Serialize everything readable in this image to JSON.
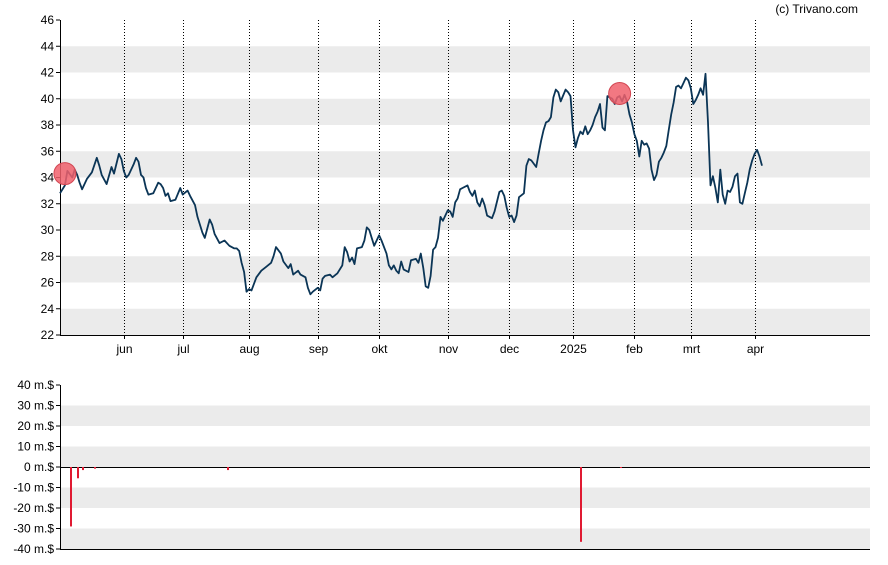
{
  "credit": "(c) Trivano.com",
  "colors": {
    "band": "#ebebeb",
    "line": "#0b3556",
    "marker": "#f0606c",
    "marker_edge": "#d24652",
    "volume_bar": "#e01a32",
    "axis": "#000000",
    "vgrid": "#000000"
  },
  "chart_data": [
    {
      "type": "line",
      "title": "",
      "xlabel": "",
      "ylabel": "",
      "ylim": [
        22,
        46
      ],
      "yticks": [
        22,
        24,
        26,
        28,
        30,
        32,
        34,
        36,
        38,
        40,
        42,
        44,
        46
      ],
      "x_range_days": [
        0,
        330
      ],
      "x_ticks": [
        {
          "label": "jun",
          "day": 26
        },
        {
          "label": "jul",
          "day": 50
        },
        {
          "label": "aug",
          "day": 77
        },
        {
          "label": "sep",
          "day": 105
        },
        {
          "label": "okt",
          "day": 130
        },
        {
          "label": "nov",
          "day": 158
        },
        {
          "label": "dec",
          "day": 183
        },
        {
          "label": "2025",
          "day": 209
        },
        {
          "label": "feb",
          "day": 234
        },
        {
          "label": "mrt",
          "day": 257
        },
        {
          "label": "apr",
          "day": 283
        }
      ],
      "grid": "alternating horizontal bands, dotted vertical lines at month ticks",
      "series_points": [
        [
          0,
          32.8
        ],
        [
          2,
          33.4
        ],
        [
          3,
          34.5
        ],
        [
          5,
          34.0
        ],
        [
          6,
          34.6
        ],
        [
          7,
          34.2
        ],
        [
          8,
          33.6
        ],
        [
          9,
          33.1
        ],
        [
          11,
          33.9
        ],
        [
          13,
          34.4
        ],
        [
          15,
          35.5
        ],
        [
          16,
          34.9
        ],
        [
          17,
          34.2
        ],
        [
          19,
          33.5
        ],
        [
          21,
          34.8
        ],
        [
          22,
          34.3
        ],
        [
          24,
          35.8
        ],
        [
          25,
          35.4
        ],
        [
          26,
          34.5
        ],
        [
          27,
          34.0
        ],
        [
          28,
          34.2
        ],
        [
          30,
          35.0
        ],
        [
          31,
          35.5
        ],
        [
          32,
          35.2
        ],
        [
          33,
          34.2
        ],
        [
          34,
          34.0
        ],
        [
          35,
          33.2
        ],
        [
          36,
          32.7
        ],
        [
          38,
          32.8
        ],
        [
          40,
          33.6
        ],
        [
          41,
          33.5
        ],
        [
          42,
          33.2
        ],
        [
          43,
          32.6
        ],
        [
          44,
          32.8
        ],
        [
          45,
          32.2
        ],
        [
          47,
          32.3
        ],
        [
          49,
          33.2
        ],
        [
          50,
          32.7
        ],
        [
          52,
          33.0
        ],
        [
          53,
          32.6
        ],
        [
          55,
          31.9
        ],
        [
          56,
          31.0
        ],
        [
          58,
          29.8
        ],
        [
          59,
          29.4
        ],
        [
          61,
          30.8
        ],
        [
          62,
          30.4
        ],
        [
          63,
          29.7
        ],
        [
          65,
          29.0
        ],
        [
          67,
          29.2
        ],
        [
          69,
          28.8
        ],
        [
          71,
          28.6
        ],
        [
          72,
          28.6
        ],
        [
          73,
          28.4
        ],
        [
          74,
          27.5
        ],
        [
          75,
          26.8
        ],
        [
          76,
          25.3
        ],
        [
          77,
          25.5
        ],
        [
          78,
          25.4
        ],
        [
          80,
          26.4
        ],
        [
          82,
          26.9
        ],
        [
          84,
          27.2
        ],
        [
          86,
          27.5
        ],
        [
          87,
          28.0
        ],
        [
          88,
          28.7
        ],
        [
          90,
          28.2
        ],
        [
          91,
          27.6
        ],
        [
          93,
          27.1
        ],
        [
          94,
          27.4
        ],
        [
          95,
          26.6
        ],
        [
          97,
          26.9
        ],
        [
          98,
          26.6
        ],
        [
          100,
          26.4
        ],
        [
          101,
          25.6
        ],
        [
          102,
          25.1
        ],
        [
          103,
          25.3
        ],
        [
          105,
          25.6
        ],
        [
          106,
          25.4
        ],
        [
          107,
          26.3
        ],
        [
          108,
          26.5
        ],
        [
          110,
          26.6
        ],
        [
          111,
          26.4
        ],
        [
          113,
          26.7
        ],
        [
          115,
          27.3
        ],
        [
          116,
          28.7
        ],
        [
          117,
          28.3
        ],
        [
          118,
          27.6
        ],
        [
          119,
          27.9
        ],
        [
          120,
          27.4
        ],
        [
          121,
          28.6
        ],
        [
          123,
          28.7
        ],
        [
          124,
          29.2
        ],
        [
          125,
          30.2
        ],
        [
          126,
          30.0
        ],
        [
          127,
          29.4
        ],
        [
          128,
          28.8
        ],
        [
          130,
          29.6
        ],
        [
          131,
          29.2
        ],
        [
          133,
          28.2
        ],
        [
          134,
          27.3
        ],
        [
          135,
          27.0
        ],
        [
          136,
          27.3
        ],
        [
          137,
          26.9
        ],
        [
          138,
          26.7
        ],
        [
          139,
          27.6
        ],
        [
          140,
          27.0
        ],
        [
          142,
          26.8
        ],
        [
          143,
          27.7
        ],
        [
          145,
          27.8
        ],
        [
          146,
          27.5
        ],
        [
          147,
          28.2
        ],
        [
          148,
          27.1
        ],
        [
          149,
          25.7
        ],
        [
          150,
          25.6
        ],
        [
          151,
          26.5
        ],
        [
          152,
          28.5
        ],
        [
          153,
          28.7
        ],
        [
          154,
          29.4
        ],
        [
          155,
          31.0
        ],
        [
          156,
          30.7
        ],
        [
          158,
          31.5
        ],
        [
          159,
          31.4
        ],
        [
          160,
          31.0
        ],
        [
          161,
          32.1
        ],
        [
          162,
          32.4
        ],
        [
          163,
          33.1
        ],
        [
          164,
          33.2
        ],
        [
          166,
          33.4
        ],
        [
          167,
          32.9
        ],
        [
          168,
          32.6
        ],
        [
          169,
          33.0
        ],
        [
          170,
          32.1
        ],
        [
          171,
          31.8
        ],
        [
          172,
          32.4
        ],
        [
          173,
          31.9
        ],
        [
          174,
          31.1
        ],
        [
          176,
          30.9
        ],
        [
          177,
          31.4
        ],
        [
          179,
          32.9
        ],
        [
          180,
          33.0
        ],
        [
          181,
          32.6
        ],
        [
          182,
          31.7
        ],
        [
          183,
          31.0
        ],
        [
          184,
          31.1
        ],
        [
          185,
          30.6
        ],
        [
          186,
          31.1
        ],
        [
          187,
          32.5
        ],
        [
          189,
          32.8
        ],
        [
          190,
          34.9
        ],
        [
          191,
          35.4
        ],
        [
          192,
          35.3
        ],
        [
          194,
          34.8
        ],
        [
          195,
          35.8
        ],
        [
          196,
          36.8
        ],
        [
          197,
          37.6
        ],
        [
          198,
          38.2
        ],
        [
          199,
          38.3
        ],
        [
          200,
          38.6
        ],
        [
          201,
          40.1
        ],
        [
          202,
          40.7
        ],
        [
          203,
          40.5
        ],
        [
          204,
          39.8
        ],
        [
          206,
          40.7
        ],
        [
          207,
          40.5
        ],
        [
          208,
          40.2
        ],
        [
          209,
          37.6
        ],
        [
          210,
          36.3
        ],
        [
          211,
          37.0
        ],
        [
          212,
          37.5
        ],
        [
          213,
          37.3
        ],
        [
          214,
          37.9
        ],
        [
          215,
          37.3
        ],
        [
          216,
          37.6
        ],
        [
          217,
          38.0
        ],
        [
          218,
          38.6
        ],
        [
          219,
          39.0
        ],
        [
          220,
          39.6
        ],
        [
          221,
          37.8
        ],
        [
          222,
          37.6
        ],
        [
          223,
          40.2
        ],
        [
          225,
          40.0
        ],
        [
          226,
          39.6
        ],
        [
          227,
          40.1
        ],
        [
          228,
          40.2
        ],
        [
          229,
          39.8
        ],
        [
          230,
          40.3
        ],
        [
          231,
          39.8
        ],
        [
          232,
          38.8
        ],
        [
          233,
          38.2
        ],
        [
          234,
          37.3
        ],
        [
          235,
          36.8
        ],
        [
          236,
          35.6
        ],
        [
          237,
          36.8
        ],
        [
          238,
          36.5
        ],
        [
          239,
          36.6
        ],
        [
          240,
          36.2
        ],
        [
          241,
          34.6
        ],
        [
          242,
          33.8
        ],
        [
          243,
          34.2
        ],
        [
          244,
          35.2
        ],
        [
          245,
          35.5
        ],
        [
          246,
          35.9
        ],
        [
          247,
          36.4
        ],
        [
          248,
          37.6
        ],
        [
          249,
          38.8
        ],
        [
          250,
          39.7
        ],
        [
          251,
          40.9
        ],
        [
          252,
          41.0
        ],
        [
          253,
          40.8
        ],
        [
          254,
          41.2
        ],
        [
          255,
          41.6
        ],
        [
          256,
          41.4
        ],
        [
          257,
          40.8
        ],
        [
          258,
          39.6
        ],
        [
          259,
          39.9
        ],
        [
          260,
          40.3
        ],
        [
          261,
          40.8
        ],
        [
          262,
          40.3
        ],
        [
          263,
          41.9
        ],
        [
          264,
          38.2
        ],
        [
          265,
          33.4
        ],
        [
          266,
          34.1
        ],
        [
          267,
          33.2
        ],
        [
          268,
          32.1
        ],
        [
          269,
          34.6
        ],
        [
          270,
          32.7
        ],
        [
          271,
          32.0
        ],
        [
          272,
          33.0
        ],
        [
          273,
          32.9
        ],
        [
          274,
          33.3
        ],
        [
          275,
          34.1
        ],
        [
          276,
          34.3
        ],
        [
          277,
          32.1
        ],
        [
          278,
          32.0
        ],
        [
          279,
          32.8
        ],
        [
          280,
          33.6
        ],
        [
          281,
          34.6
        ],
        [
          282,
          35.3
        ],
        [
          283,
          35.8
        ],
        [
          284,
          36.1
        ],
        [
          285,
          35.6
        ],
        [
          286,
          34.9
        ]
      ],
      "markers": [
        {
          "day": 2,
          "value": 34.3
        },
        {
          "day": 228,
          "value": 40.4
        }
      ]
    },
    {
      "type": "bar",
      "title": "",
      "xlabel": "",
      "ylabel": "",
      "ylim": [
        -40,
        40
      ],
      "y_ticks": [
        {
          "label": "40 m.$",
          "value": 40
        },
        {
          "label": "30 m.$",
          "value": 30
        },
        {
          "label": "20 m.$",
          "value": 20
        },
        {
          "label": "10 m.$",
          "value": 10
        },
        {
          "label": "0 m.$",
          "value": 0
        },
        {
          "label": "-10 m.$",
          "value": -10
        },
        {
          "label": "-20 m.$",
          "value": -20
        },
        {
          "label": "-30 m.$",
          "value": -30
        },
        {
          "label": "-40 m.$",
          "value": -40
        }
      ],
      "bars": [
        {
          "day": 4,
          "value": -29
        },
        {
          "day": 7,
          "value": -5.5
        },
        {
          "day": 9,
          "value": -1.5
        },
        {
          "day": 14,
          "value": -0.8
        },
        {
          "day": 68,
          "value": -1.5
        },
        {
          "day": 212,
          "value": -36.5
        },
        {
          "day": 228,
          "value": -0.5
        }
      ]
    }
  ]
}
